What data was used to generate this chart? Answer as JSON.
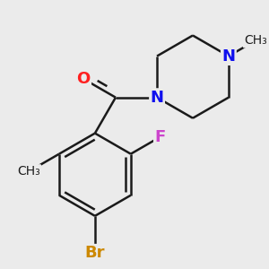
{
  "background_color": "#ebebeb",
  "bond_color": "#1a1a1a",
  "bond_lw": 1.8,
  "dbo": 0.05,
  "figsize": [
    3.0,
    3.0
  ],
  "dpi": 100,
  "colors": {
    "O": "#ff2020",
    "N": "#1010ee",
    "F": "#cc44cc",
    "Br": "#cc8800",
    "C": "#1a1a1a"
  }
}
